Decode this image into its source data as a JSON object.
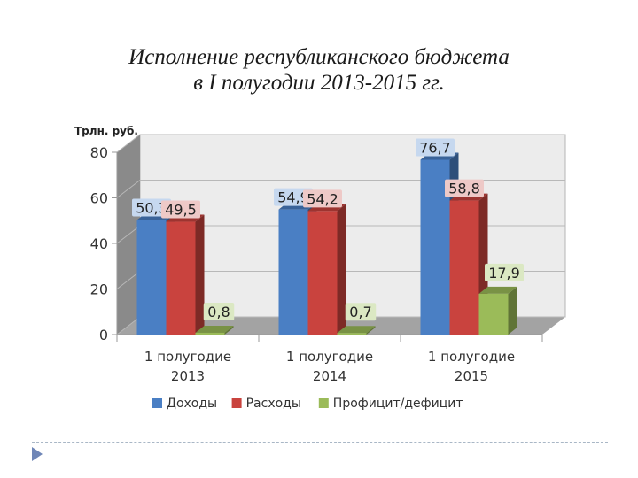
{
  "slide": {
    "title_line1": "Исполнение республиканского бюджета",
    "title_line2": "в I полугодии 2013-2015 гг."
  },
  "chart_data": {
    "type": "bar",
    "title": "Исполнение республиканского бюджета в I полугодии 2013-2015 гг.",
    "ylabel": "Трлн. руб.",
    "xlabel": "",
    "ylim": [
      0,
      80
    ],
    "yticks": [
      0,
      20,
      40,
      60,
      80
    ],
    "grid": true,
    "legend": "bottom",
    "three_d": true,
    "categories": [
      [
        "1 полугодие",
        "2013"
      ],
      [
        "1 полугодие",
        "2014"
      ],
      [
        "1 полугодие",
        "2015"
      ]
    ],
    "series": [
      {
        "name": "Доходы",
        "color": "#4a7fc4",
        "values": [
          50.3,
          54.9,
          76.7
        ],
        "labels": [
          "50,3",
          "54,9",
          "76,7"
        ]
      },
      {
        "name": "Расходы",
        "color": "#c9433e",
        "values": [
          49.5,
          54.2,
          58.8
        ],
        "labels": [
          "49,5",
          "54,2",
          "58,8"
        ]
      },
      {
        "name": "Профицит/дефицит",
        "color": "#9bbb59",
        "values": [
          0.8,
          0.7,
          17.9
        ],
        "labels": [
          "0,8",
          "0,7",
          "17,9"
        ]
      }
    ]
  }
}
